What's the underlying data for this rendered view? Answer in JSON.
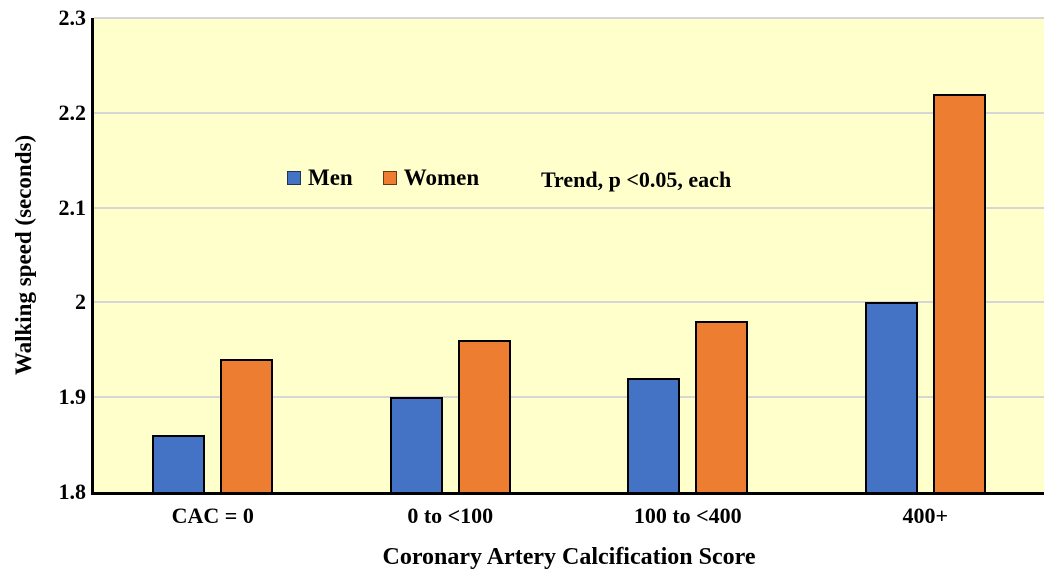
{
  "chart_data": {
    "type": "bar",
    "title": "",
    "categories": [
      "CAC = 0",
      "0 to <100",
      "100 to <400",
      "400+"
    ],
    "series": [
      {
        "name": "Men",
        "color": "#4472C4",
        "values": [
          1.86,
          1.9,
          1.92,
          2.0
        ]
      },
      {
        "name": "Women",
        "color": "#ED7D31",
        "values": [
          1.94,
          1.96,
          1.98,
          2.22
        ]
      }
    ],
    "xlabel": "Coronary Artery Calcification Score",
    "ylabel": "Walking speed (seconds)",
    "ylim": [
      1.8,
      2.3
    ],
    "yticks": [
      {
        "value": 2.3,
        "label": "2.3"
      },
      {
        "value": 2.2,
        "label": "2.2"
      },
      {
        "value": 2.1,
        "label": "2.1"
      },
      {
        "value": 2.0,
        "label": "2"
      },
      {
        "value": 1.9,
        "label": "1.9"
      },
      {
        "value": 1.8,
        "label": "1.8"
      }
    ],
    "annotation": "Trend, p <0.05, each",
    "legend_position": "inside-top-left",
    "grid": true,
    "colors": {
      "plot_background": "#FFFFCC",
      "gridline": "#D6D6D6",
      "axis": "#000000",
      "bar_border": "#000000",
      "text": "#000000"
    }
  }
}
